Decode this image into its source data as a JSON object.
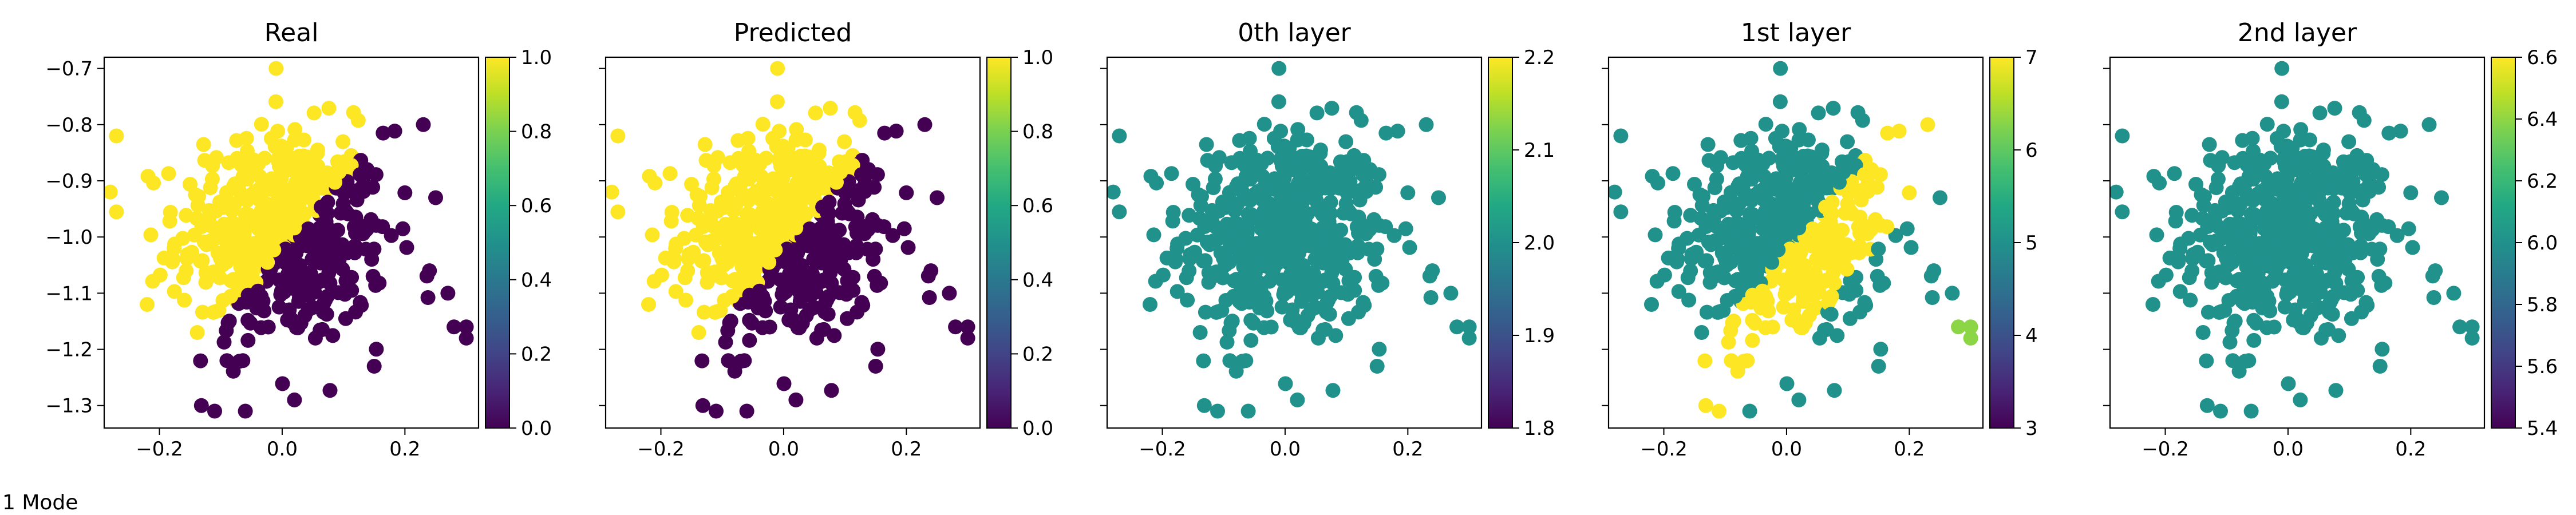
{
  "figure_caption": "1 Mode",
  "colors": {
    "viridis_dark": "#440154",
    "viridis_teal": "#21918c",
    "viridis_yellow": "#fde725",
    "viridis_green": "#5ec962",
    "axis": "#000000",
    "background": "#ffffff"
  },
  "chart_data": [
    {
      "type": "scatter",
      "title": "Real",
      "xlim": [
        -0.29,
        0.32
      ],
      "ylim": [
        -1.34,
        -0.68
      ],
      "xticks": [
        -0.2,
        0.0,
        0.2
      ],
      "yticks": [
        -1.3,
        -1.2,
        -1.1,
        -1.0,
        -0.9,
        -0.8,
        -0.7
      ],
      "show_yticklabels": true,
      "colorbar": {
        "cmap": "viridis",
        "min": 0.0,
        "max": 1.0,
        "ticks": [
          0.0,
          0.2,
          0.4,
          0.6,
          0.8,
          1.0
        ]
      },
      "coloring": "real",
      "grid": false
    },
    {
      "type": "scatter",
      "title": "Predicted",
      "xlim": [
        -0.29,
        0.32
      ],
      "ylim": [
        -1.34,
        -0.68
      ],
      "xticks": [
        -0.2,
        0.0,
        0.2
      ],
      "yticks": [
        -1.3,
        -1.2,
        -1.1,
        -1.0,
        -0.9,
        -0.8,
        -0.7
      ],
      "show_yticklabels": false,
      "colorbar": {
        "cmap": "viridis",
        "min": 0.0,
        "max": 1.0,
        "ticks": [
          0.0,
          0.2,
          0.4,
          0.6,
          0.8,
          1.0
        ]
      },
      "coloring": "real",
      "grid": false
    },
    {
      "type": "scatter",
      "title": "0th layer",
      "xlim": [
        -0.29,
        0.32
      ],
      "ylim": [
        -1.34,
        -0.68
      ],
      "xticks": [
        -0.2,
        0.0,
        0.2
      ],
      "yticks": [
        -1.3,
        -1.2,
        -1.1,
        -1.0,
        -0.9,
        -0.8,
        -0.7
      ],
      "show_yticklabels": false,
      "colorbar": {
        "cmap": "viridis",
        "min": 1.8,
        "max": 2.2,
        "ticks": [
          1.8,
          1.9,
          2.0,
          2.1,
          2.2
        ]
      },
      "coloring": "constant",
      "constant_value": 2.0,
      "grid": false
    },
    {
      "type": "scatter",
      "title": "1st layer",
      "xlim": [
        -0.29,
        0.32
      ],
      "ylim": [
        -1.34,
        -0.68
      ],
      "xticks": [
        -0.2,
        0.0,
        0.2
      ],
      "yticks": [
        -1.3,
        -1.2,
        -1.1,
        -1.0,
        -0.9,
        -0.8,
        -0.7
      ],
      "show_yticklabels": false,
      "colorbar": {
        "cmap": "viridis",
        "min": 3,
        "max": 7,
        "ticks": [
          3,
          4,
          5,
          6,
          7
        ]
      },
      "coloring": "layer1",
      "grid": false
    },
    {
      "type": "scatter",
      "title": "2nd layer",
      "xlim": [
        -0.29,
        0.32
      ],
      "ylim": [
        -1.34,
        -0.68
      ],
      "xticks": [
        -0.2,
        0.0,
        0.2
      ],
      "yticks": [
        -1.3,
        -1.2,
        -1.1,
        -1.0,
        -0.9,
        -0.8,
        -0.7
      ],
      "show_yticklabels": false,
      "colorbar": {
        "cmap": "viridis",
        "min": 5.4,
        "max": 6.6,
        "ticks": [
          5.4,
          5.6,
          5.8,
          6.0,
          6.2,
          6.4,
          6.6
        ]
      },
      "coloring": "constant",
      "constant_value": 6.0,
      "grid": false
    }
  ],
  "points": {
    "count": 520,
    "x_mean": 0.0,
    "x_sd": 0.1,
    "y_mean": -1.0,
    "y_sd": 0.1,
    "extras": [
      [
        -0.01,
        -0.7
      ],
      [
        -0.27,
        -0.82
      ],
      [
        -0.28,
        -0.92
      ],
      [
        -0.11,
        -1.31
      ],
      [
        0.02,
        -1.29
      ],
      [
        0.3,
        -1.16
      ],
      [
        0.28,
        -1.16
      ],
      [
        0.3,
        -1.18
      ],
      [
        0.25,
        -0.93
      ],
      [
        0.23,
        -0.8
      ],
      [
        -0.09,
        -1.22
      ],
      [
        0.15,
        -1.23
      ],
      [
        -0.06,
        -1.31
      ],
      [
        0.24,
        -1.06
      ],
      [
        0.27,
        -1.1
      ],
      [
        -0.22,
        -1.12
      ]
    ]
  }
}
